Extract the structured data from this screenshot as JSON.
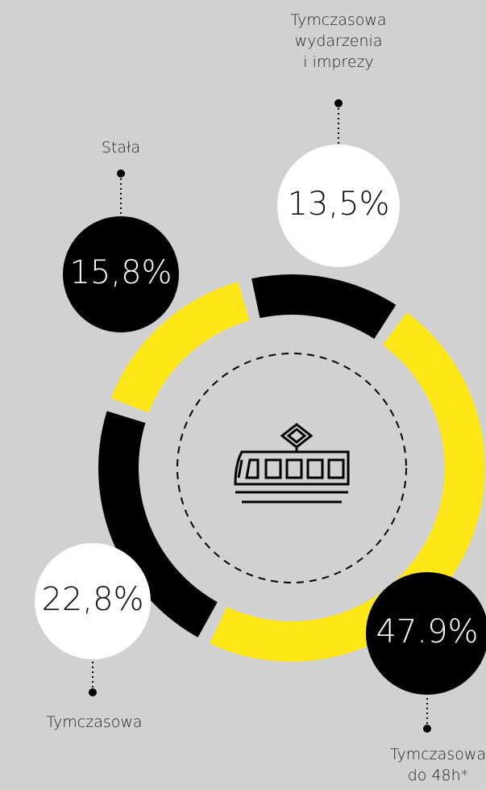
{
  "chart_data": {
    "type": "donut",
    "categories": [
      "Tymczasowa\nwydarzenia\ni imprezy",
      "Tymczasowa\ndo 48h*",
      "Tymczasowa",
      "Stała"
    ],
    "values": [
      13.5,
      47.9,
      22.8,
      15.8
    ],
    "value_labels": [
      "13,5%",
      "47.9%",
      "22,8%",
      "15,8%"
    ],
    "colors": [
      "#000000",
      "#ffe617",
      "#000000",
      "#ffe617"
    ]
  }
}
